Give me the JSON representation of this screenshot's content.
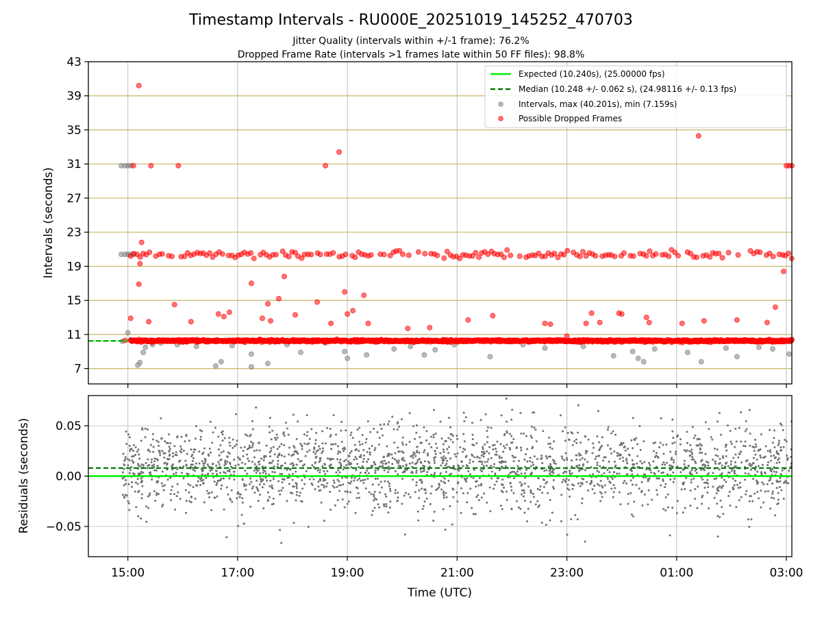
{
  "figure": {
    "title": "Timestamp Intervals - RU000E_20251019_145252_470703",
    "subtitle_1": "Jitter Quality (intervals within +/-1 frame): 76.2%",
    "subtitle_2": "Dropped Frame Rate (intervals >1 frames late within 50 FF files): 98.8%"
  },
  "chart_data": [
    {
      "type": "scatter",
      "ylabel": "Intervals (seconds)",
      "x_unit": "hours since 15:00 UTC",
      "xlim": [
        -0.72,
        12.1
      ],
      "ylim": [
        5.2,
        43
      ],
      "yticks": [
        "7",
        "11",
        "15",
        "19",
        "23",
        "27",
        "31",
        "35",
        "39",
        "43"
      ],
      "yticks_values": [
        7,
        11,
        15,
        19,
        23,
        27,
        31,
        35,
        39,
        43
      ],
      "hlines": [
        {
          "y": 7,
          "color": "#c8b46a"
        },
        {
          "y": 11,
          "color": "#c8b46a"
        },
        {
          "y": 15,
          "color": "#c8b46a"
        },
        {
          "y": 19,
          "color": "#c8b46a"
        },
        {
          "y": 23,
          "color": "#c8b46a"
        },
        {
          "y": 27,
          "color": "#c8b46a"
        },
        {
          "y": 31,
          "color": "#c8b46a"
        },
        {
          "y": 35,
          "color": "#c8b46a"
        },
        {
          "y": 39,
          "color": "#c8b46a"
        }
      ],
      "legend_position": "top-right",
      "legend": [
        {
          "label": "Expected (10.240s), (25.00000 fps)",
          "kind": "line",
          "color": "#00ee00"
        },
        {
          "label": "Median (10.248 +/- 0.062 s), (24.98116 +/- 0.13 fps)",
          "kind": "dashed",
          "color": "#007700"
        },
        {
          "label": "Intervals, max (40.201s), min (7.159s)",
          "kind": "marker",
          "color": "#808080"
        },
        {
          "label": "Possible Dropped Frames",
          "kind": "marker",
          "color": "#ff0000"
        }
      ],
      "expected_y": 10.24,
      "median_y": 10.248,
      "series": [
        {
          "name": "Intervals, max (40.201s), min (7.159s)",
          "color": "#808080",
          "points": [
            [
              -0.12,
              30.8
            ],
            [
              -0.05,
              30.8
            ],
            [
              0.0,
              30.8
            ],
            [
              0.05,
              30.8
            ],
            [
              -0.12,
              20.4
            ],
            [
              -0.05,
              20.4
            ],
            [
              0.0,
              20.4
            ],
            [
              0.05,
              20.4
            ],
            [
              0.1,
              20.4
            ],
            [
              -0.1,
              10.2
            ],
            [
              0.0,
              11.2
            ],
            [
              0.05,
              10.4
            ],
            [
              0.18,
              7.4
            ],
            [
              0.22,
              7.7
            ],
            [
              0.28,
              8.9
            ],
            [
              0.32,
              9.5
            ],
            [
              0.45,
              9.8
            ],
            [
              0.6,
              10.0
            ],
            [
              0.9,
              9.8
            ],
            [
              1.25,
              9.6
            ],
            [
              1.6,
              7.3
            ],
            [
              1.7,
              7.8
            ],
            [
              1.9,
              9.7
            ],
            [
              2.25,
              8.7
            ],
            [
              2.25,
              7.2
            ],
            [
              2.55,
              7.6
            ],
            [
              2.9,
              9.8
            ],
            [
              3.15,
              8.9
            ],
            [
              3.6,
              10.0
            ],
            [
              3.95,
              9.0
            ],
            [
              4.0,
              8.2
            ],
            [
              4.35,
              8.6
            ],
            [
              4.85,
              9.3
            ],
            [
              5.15,
              9.6
            ],
            [
              5.4,
              8.6
            ],
            [
              5.6,
              9.2
            ],
            [
              5.95,
              9.8
            ],
            [
              6.6,
              8.4
            ],
            [
              7.2,
              9.8
            ],
            [
              7.6,
              9.4
            ],
            [
              8.3,
              9.6
            ],
            [
              8.85,
              8.5
            ],
            [
              9.2,
              9.0
            ],
            [
              9.3,
              8.2
            ],
            [
              9.4,
              7.8
            ],
            [
              9.6,
              9.3
            ],
            [
              10.2,
              8.9
            ],
            [
              10.45,
              7.8
            ],
            [
              10.9,
              9.4
            ],
            [
              11.1,
              8.4
            ],
            [
              11.5,
              9.5
            ],
            [
              11.75,
              9.3
            ],
            [
              12.05,
              8.7
            ]
          ]
        },
        {
          "name": "Possible Dropped Frames",
          "color": "#ff0000",
          "points": [
            [
              0.2,
              40.2
            ],
            [
              0.1,
              30.8
            ],
            [
              0.42,
              30.8
            ],
            [
              0.92,
              30.8
            ],
            [
              3.6,
              30.8
            ],
            [
              3.85,
              32.4
            ],
            [
              10.4,
              34.3
            ],
            [
              12.0,
              30.8
            ],
            [
              12.05,
              30.8
            ],
            [
              12.1,
              30.8
            ],
            [
              0.25,
              21.8
            ],
            [
              0.22,
              19.3
            ],
            [
              0.2,
              16.9
            ],
            [
              0.85,
              14.5
            ],
            [
              1.15,
              12.5
            ],
            [
              1.65,
              13.4
            ],
            [
              1.75,
              13.1
            ],
            [
              1.85,
              13.6
            ],
            [
              2.25,
              17.0
            ],
            [
              2.55,
              14.6
            ],
            [
              2.45,
              12.9
            ],
            [
              2.6,
              12.6
            ],
            [
              2.75,
              15.2
            ],
            [
              2.85,
              17.8
            ],
            [
              3.05,
              13.3
            ],
            [
              3.45,
              14.8
            ],
            [
              3.7,
              12.3
            ],
            [
              3.95,
              16.0
            ],
            [
              4.0,
              13.4
            ],
            [
              4.1,
              13.8
            ],
            [
              4.3,
              15.6
            ],
            [
              4.38,
              12.3
            ],
            [
              5.1,
              11.7
            ],
            [
              5.5,
              11.8
            ],
            [
              6.2,
              12.7
            ],
            [
              6.65,
              13.2
            ],
            [
              7.6,
              12.3
            ],
            [
              7.7,
              12.2
            ],
            [
              8.0,
              10.8
            ],
            [
              8.35,
              12.3
            ],
            [
              8.45,
              13.5
            ],
            [
              8.6,
              12.4
            ],
            [
              8.95,
              13.5
            ],
            [
              9.0,
              13.4
            ],
            [
              9.45,
              13.0
            ],
            [
              9.5,
              12.4
            ],
            [
              10.1,
              12.3
            ],
            [
              10.5,
              12.6
            ],
            [
              11.1,
              12.7
            ],
            [
              11.65,
              12.4
            ],
            [
              11.95,
              18.4
            ],
            [
              11.8,
              14.2
            ],
            [
              0.05,
              12.9
            ],
            [
              0.38,
              12.5
            ],
            [
              -0.05,
              10.3
            ]
          ],
          "bands": [
            {
              "x_start": 0.05,
              "x_end": 12.1,
              "y": 20.4,
              "spread": 0.4,
              "count": 210
            },
            {
              "x_start": 0.05,
              "x_end": 12.1,
              "y": 10.25,
              "spread": 0.12,
              "count": 1400
            }
          ]
        }
      ]
    },
    {
      "type": "scatter",
      "ylabel": "Residuals (seconds)",
      "xlabel": "Time (UTC)",
      "x_unit": "hours since 15:00 UTC",
      "xlim": [
        -0.72,
        12.1
      ],
      "ylim": [
        -0.08,
        0.08
      ],
      "yticks": [
        "0.05",
        "0.00",
        "−0.05"
      ],
      "yticks_values": [
        0.05,
        0.0,
        -0.05
      ],
      "xticks": [
        "15:00",
        "17:00",
        "19:00",
        "21:00",
        "23:00",
        "01:00",
        "03:00"
      ],
      "xticks_values": [
        0,
        2,
        4,
        6,
        8,
        10,
        12
      ],
      "expected_y": 0.0,
      "median_y": 0.008,
      "series": [
        {
          "name": "Residuals",
          "color": "#707070",
          "x_range": [
            -0.1,
            12.1
          ],
          "distribution": "normal",
          "center": 0.008,
          "stddev": 0.022,
          "count": 2300
        }
      ]
    }
  ]
}
